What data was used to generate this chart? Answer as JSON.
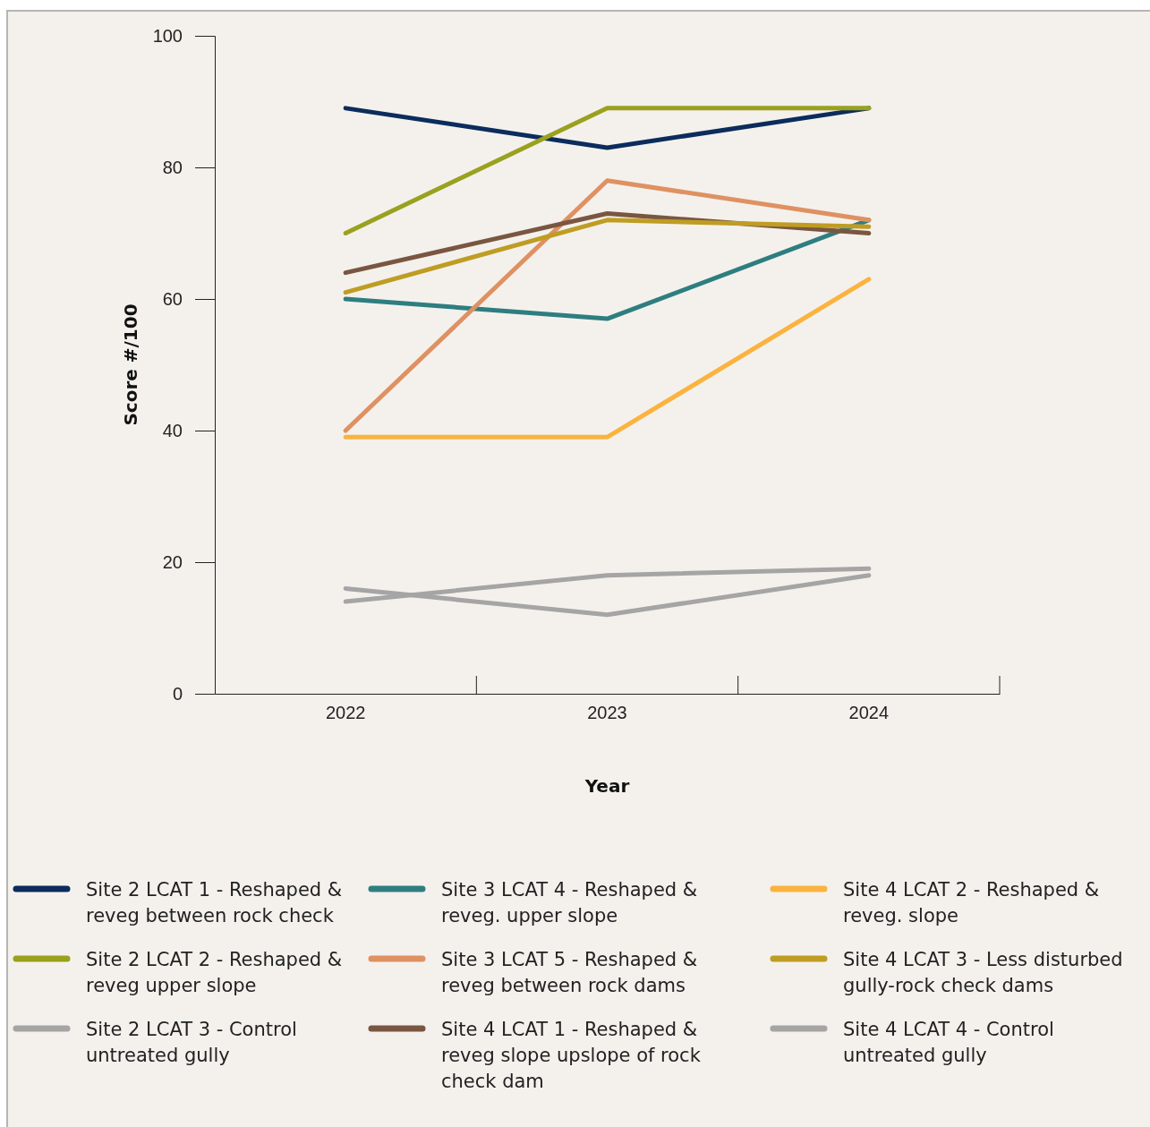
{
  "chart_data": {
    "type": "line",
    "xlabel": "Year",
    "ylabel": "Score #/100",
    "categories": [
      "2022",
      "2023",
      "2024"
    ],
    "ylim": [
      0,
      100
    ],
    "yticks": [
      0,
      20,
      40,
      60,
      80,
      100
    ],
    "grid": false,
    "legend": "bottom",
    "marker": "none",
    "line_style": "solid",
    "series": [
      {
        "name": "Site 2 LCAT 1 - Reshaped & reveg between rock check",
        "color": "#0b2c5c",
        "values": [
          89,
          83,
          89
        ]
      },
      {
        "name": "Site 2 LCAT 2 - Reshaped & reveg upper slope",
        "color": "#99a11f",
        "values": [
          70,
          89,
          89
        ]
      },
      {
        "name": "Site 2 LCAT 3 - Control untreated gully",
        "color": "#a5a5a5",
        "values": [
          16,
          12,
          18
        ]
      },
      {
        "name": "Site 3 LCAT 4 - Reshaped & reveg. upper slope",
        "color": "#2e7e80",
        "values": [
          60,
          57,
          72
        ]
      },
      {
        "name": "Site 3 LCAT 5 - Reshaped & reveg between rock dams",
        "color": "#df9162",
        "values": [
          40,
          78,
          72
        ]
      },
      {
        "name": "Site 4 LCAT 1 - Reshaped & reveg slope upslope of rock check dam",
        "color": "#7a5641",
        "values": [
          64,
          73,
          70
        ]
      },
      {
        "name": "Site 4 LCAT 2 - Reshaped & reveg. slope",
        "color": "#fbb33f",
        "values": [
          39,
          39,
          63
        ]
      },
      {
        "name": "Site 4 LCAT 3 - Less disturbed gully-rock check dams",
        "color": "#bf9d23",
        "values": [
          61,
          72,
          71
        ]
      },
      {
        "name": "Site 4 LCAT 4 - Control untreated gully",
        "color": "#a5a5a5",
        "values": [
          14,
          18,
          19
        ]
      }
    ]
  }
}
